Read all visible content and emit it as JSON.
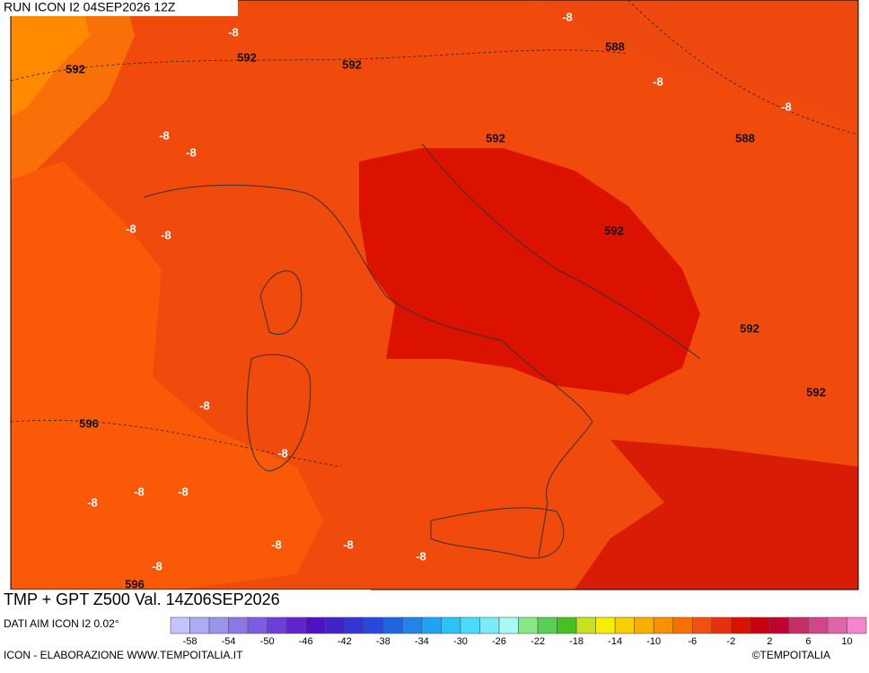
{
  "header": {
    "run": "RUN ICON I2 04SEP2026 12Z"
  },
  "footer": {
    "title": "TMP + GPT Z500 Val. 14Z06SEP2026",
    "source": "DATI AIM ICON I2 0.02°",
    "credit": "ICON - ELABORAZIONE WWW.TEMPOITALIA.IT",
    "copyright": "©TEMPOITALIA"
  },
  "colorbar": {
    "colors": [
      "#c4c4fc",
      "#acacf4",
      "#9c94ec",
      "#8c78e4",
      "#7c5ce0",
      "#6c40d8",
      "#6024cc",
      "#5010c4",
      "#4420cc",
      "#3434d4",
      "#2848dc",
      "#2064e0",
      "#2084e8",
      "#20a4f0",
      "#28c4f8",
      "#48dcf8",
      "#78ecf8",
      "#a8f8f4",
      "#88e888",
      "#58d058",
      "#48c020",
      "#c8e020",
      "#f4f000",
      "#f8d000",
      "#f8b000",
      "#f89000",
      "#f87000",
      "#f05010",
      "#e83010",
      "#dc1000",
      "#c80010",
      "#c00030",
      "#c43064",
      "#d04888",
      "#e064ac",
      "#f484cc"
    ],
    "ticks": [
      "-58",
      "-54",
      "-50",
      "-46",
      "-42",
      "-38",
      "-34",
      "-30",
      "-26",
      "-22",
      "-18",
      "-14",
      "-10",
      "-6",
      "-2",
      "2",
      "6",
      "10"
    ]
  },
  "map": {
    "labels": [
      "592",
      "-8",
      "592",
      "592",
      "-8",
      "588",
      "-8",
      "-8",
      "592",
      "588",
      "-8",
      "-8",
      "-8",
      "-8",
      "592",
      "592",
      "592",
      "-8",
      "596",
      "-8",
      "-8",
      "-8",
      "-8",
      "-8",
      "-8",
      "-8",
      "-8",
      "596"
    ]
  }
}
